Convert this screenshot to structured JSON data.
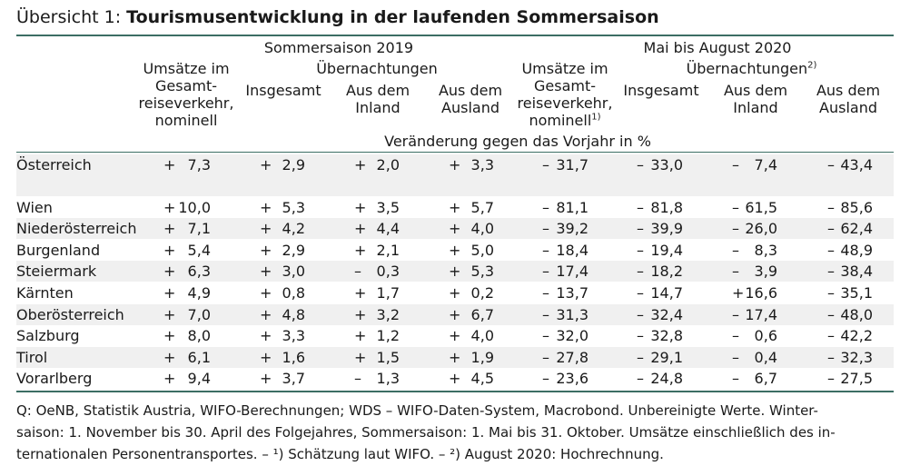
{
  "title": {
    "prefix": "Übersicht 1: ",
    "main": "Tourismusentwicklung in der laufenden Sommersaison"
  },
  "header": {
    "group1": "Sommersaison 2019",
    "group2": "Mai bis August 2020",
    "umsaetze1": "Umsätze im\nGesamt-\nreiseverkehr,\nnominell",
    "uebern1": "Übernachtungen",
    "umsaetze2": "Umsätze im\nGesamt-\nreiseverkehr,\nnominell",
    "umsaetze2_note": "1)",
    "uebern2": "Übernachtungen",
    "uebern2_note": "2)",
    "insgesamt1": "Insgesamt",
    "inland1": "Aus dem\nInland",
    "ausland1": "Aus dem\nAusland",
    "insgesamt2": "Insgesamt",
    "inland2": "Aus dem\nInland",
    "ausland2": "Aus dem\nAusland",
    "unit": "Veränderung gegen das Vorjahr in %"
  },
  "rows": [
    {
      "label": "Österreich",
      "cells": [
        [
          "+",
          "7,3"
        ],
        [
          "+",
          "2,9"
        ],
        [
          "+",
          "2,0"
        ],
        [
          "+",
          "3,3"
        ],
        [
          "–",
          "31,7"
        ],
        [
          "–",
          "33,0"
        ],
        [
          "–",
          "7,4"
        ],
        [
          "–",
          "43,4"
        ]
      ]
    },
    {
      "label": "Wien",
      "cells": [
        [
          "+",
          "10,0"
        ],
        [
          "+",
          "5,3"
        ],
        [
          "+",
          "3,5"
        ],
        [
          "+",
          "5,7"
        ],
        [
          "–",
          "81,1"
        ],
        [
          "–",
          "81,8"
        ],
        [
          "–",
          "61,5"
        ],
        [
          "–",
          "85,6"
        ]
      ]
    },
    {
      "label": "Niederösterreich",
      "cells": [
        [
          "+",
          "7,1"
        ],
        [
          "+",
          "4,2"
        ],
        [
          "+",
          "4,4"
        ],
        [
          "+",
          "4,0"
        ],
        [
          "–",
          "39,2"
        ],
        [
          "–",
          "39,9"
        ],
        [
          "–",
          "26,0"
        ],
        [
          "–",
          "62,4"
        ]
      ]
    },
    {
      "label": "Burgenland",
      "cells": [
        [
          "+",
          "5,4"
        ],
        [
          "+",
          "2,9"
        ],
        [
          "+",
          "2,1"
        ],
        [
          "+",
          "5,0"
        ],
        [
          "–",
          "18,4"
        ],
        [
          "–",
          "19,4"
        ],
        [
          "–",
          "8,3"
        ],
        [
          "–",
          "48,9"
        ]
      ]
    },
    {
      "label": "Steiermark",
      "cells": [
        [
          "+",
          "6,3"
        ],
        [
          "+",
          "3,0"
        ],
        [
          "–",
          "0,3"
        ],
        [
          "+",
          "5,3"
        ],
        [
          "–",
          "17,4"
        ],
        [
          "–",
          "18,2"
        ],
        [
          "–",
          "3,9"
        ],
        [
          "–",
          "38,4"
        ]
      ]
    },
    {
      "label": "Kärnten",
      "cells": [
        [
          "+",
          "4,9"
        ],
        [
          "+",
          "0,8"
        ],
        [
          "+",
          "1,7"
        ],
        [
          "+",
          "0,2"
        ],
        [
          "–",
          "13,7"
        ],
        [
          "–",
          "14,7"
        ],
        [
          "+",
          "16,6"
        ],
        [
          "–",
          "35,1"
        ]
      ]
    },
    {
      "label": "Oberösterreich",
      "cells": [
        [
          "+",
          "7,0"
        ],
        [
          "+",
          "4,8"
        ],
        [
          "+",
          "3,2"
        ],
        [
          "+",
          "6,7"
        ],
        [
          "–",
          "31,3"
        ],
        [
          "–",
          "32,4"
        ],
        [
          "–",
          "17,4"
        ],
        [
          "–",
          "48,0"
        ]
      ]
    },
    {
      "label": "Salzburg",
      "cells": [
        [
          "+",
          "8,0"
        ],
        [
          "+",
          "3,3"
        ],
        [
          "+",
          "1,2"
        ],
        [
          "+",
          "4,0"
        ],
        [
          "–",
          "32,0"
        ],
        [
          "–",
          "32,8"
        ],
        [
          "–",
          "0,6"
        ],
        [
          "–",
          "42,2"
        ]
      ]
    },
    {
      "label": "Tirol",
      "cells": [
        [
          "+",
          "6,1"
        ],
        [
          "+",
          "1,6"
        ],
        [
          "+",
          "1,5"
        ],
        [
          "+",
          "1,9"
        ],
        [
          "–",
          "27,8"
        ],
        [
          "–",
          "29,1"
        ],
        [
          "–",
          "0,4"
        ],
        [
          "–",
          "32,3"
        ]
      ]
    },
    {
      "label": "Vorarlberg",
      "cells": [
        [
          "+",
          "9,4"
        ],
        [
          "+",
          "3,7"
        ],
        [
          "–",
          "1,3"
        ],
        [
          "+",
          "4,5"
        ],
        [
          "–",
          "23,6"
        ],
        [
          "–",
          "24,8"
        ],
        [
          "–",
          "6,7"
        ],
        [
          "–",
          "27,5"
        ]
      ]
    }
  ],
  "footnote": "Q: OeNB, Statistik Austria, WIFO-Berechnungen; WDS – WIFO-Daten-System, Macrobond. Unbereinigte Werte. Winter-\nsaison: 1. November bis 30. April des Folgejahres, Sommersaison: 1. Mai bis 31. Oktober. Umsätze einschließlich des in-\nternationalen Personentransportes. – ¹) Schätzung laut WIFO. – ²) August 2020: Hochrechnung."
}
